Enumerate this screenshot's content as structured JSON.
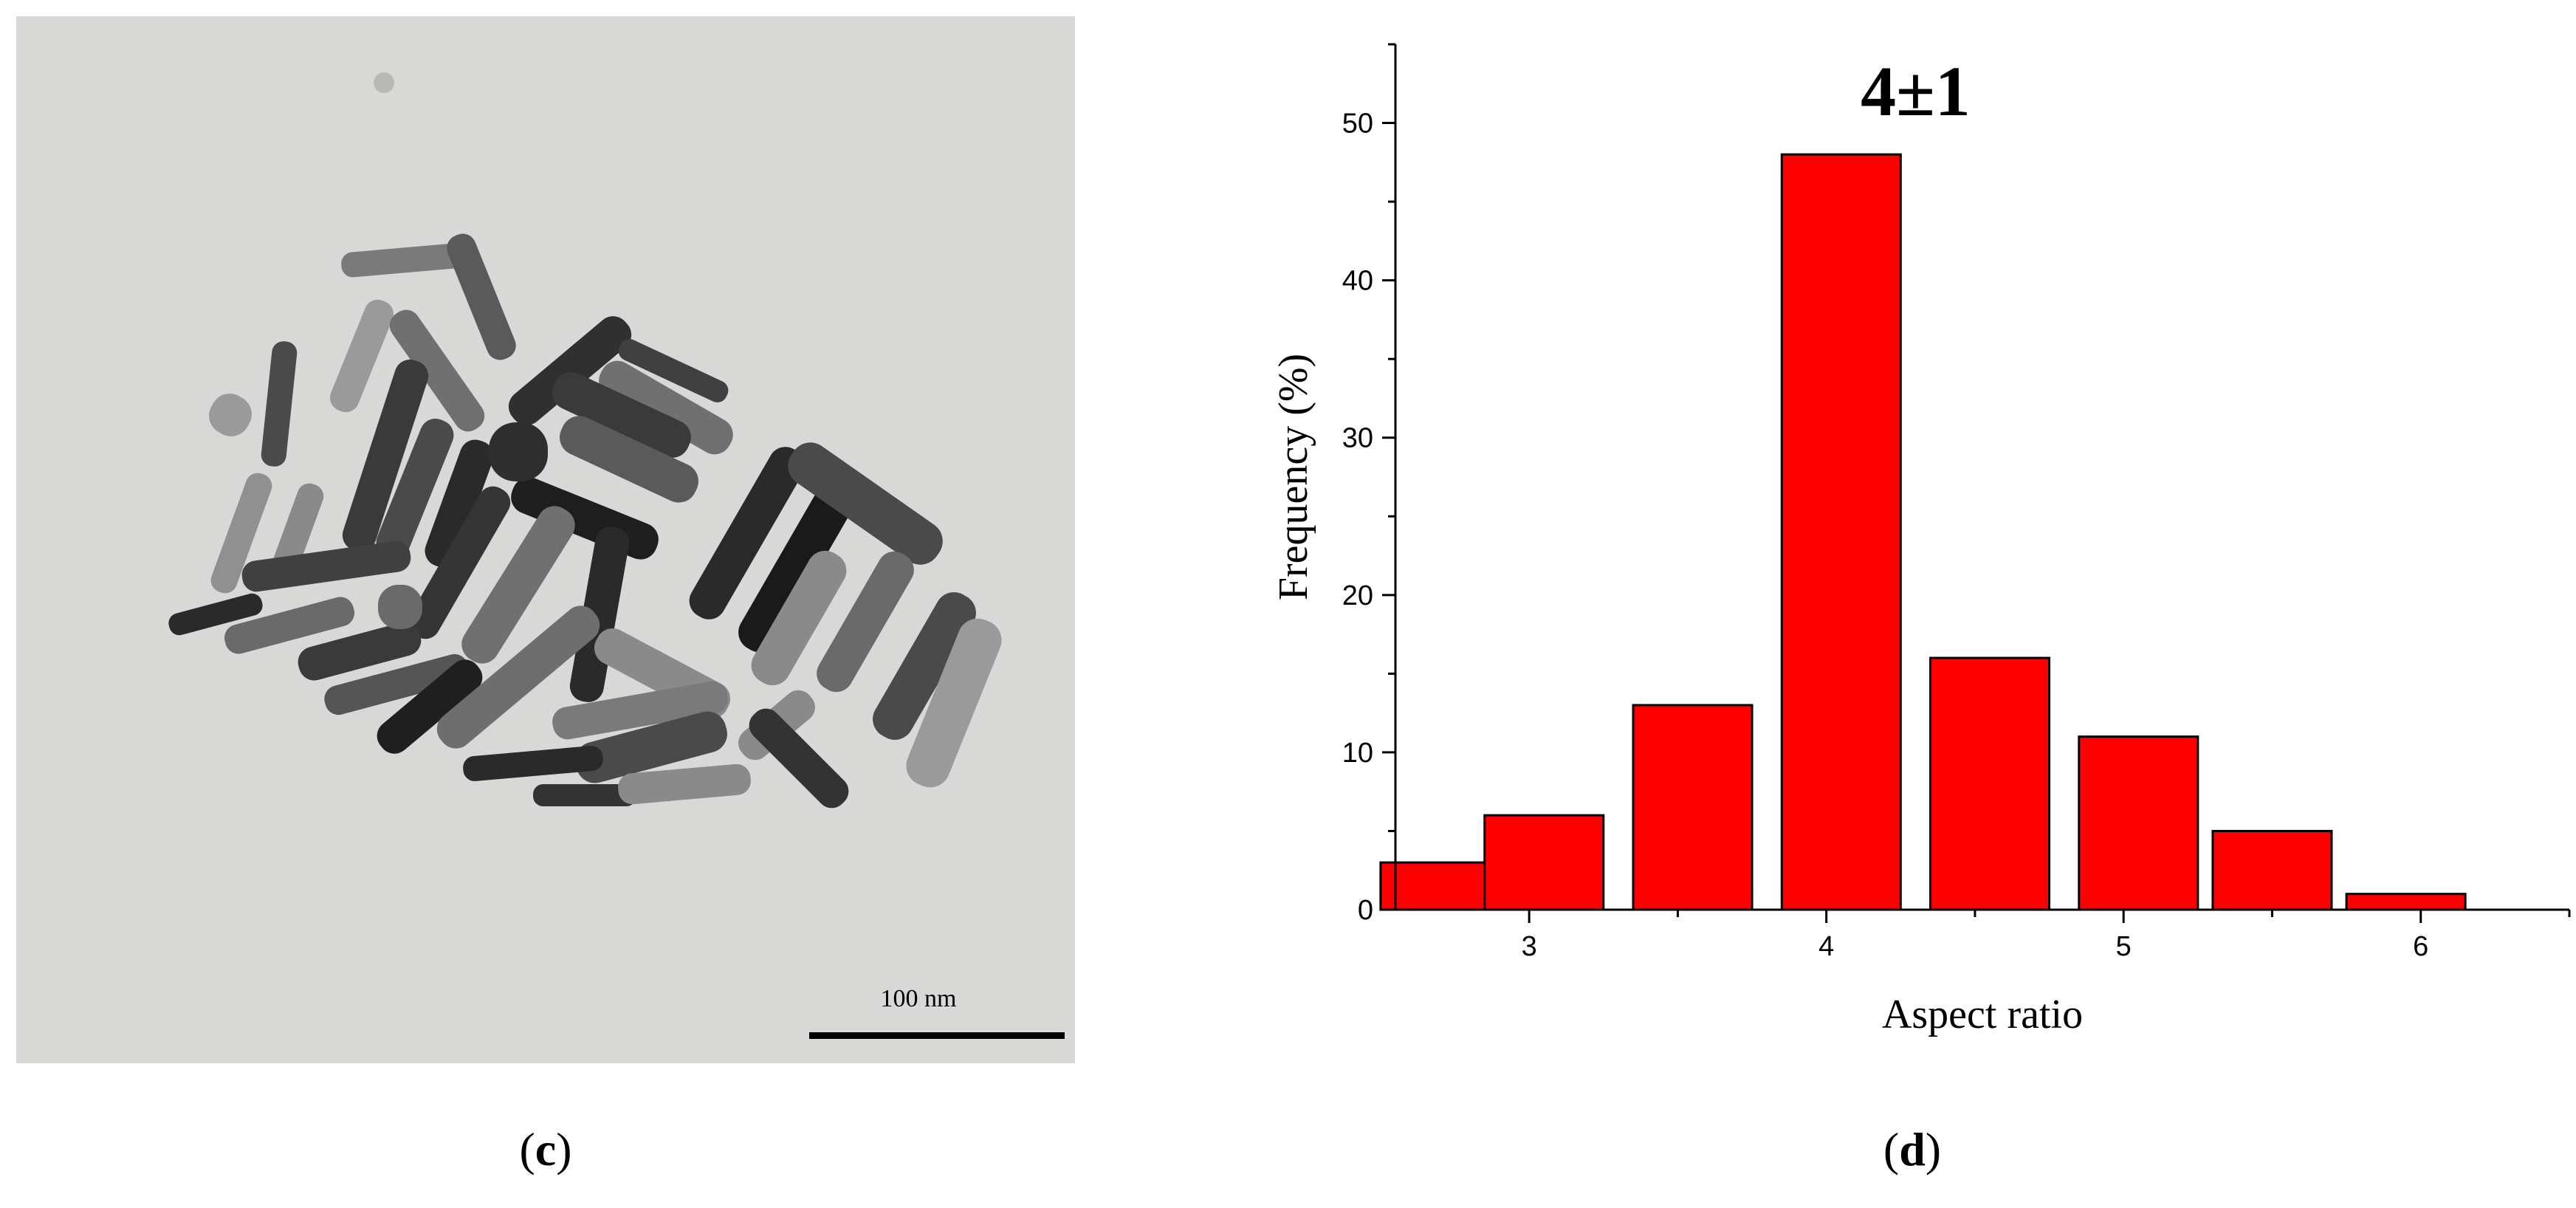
{
  "panels": {
    "c": {
      "label_open": "(",
      "label_letter": "c",
      "label_close": ")"
    },
    "d": {
      "label_open": "(",
      "label_letter": "d",
      "label_close": ")"
    }
  },
  "tem": {
    "scale_text": "100 nm",
    "colors": {
      "background": "#d8d8d6",
      "rod_dark": "#1e1e1e",
      "rod_light": "#8a8a8a"
    }
  },
  "chart_data": {
    "type": "bar",
    "x": [
      2.7,
      3.05,
      3.55,
      4.05,
      4.55,
      5.05,
      5.5,
      5.95
    ],
    "values": [
      3,
      6,
      13,
      48,
      16,
      11,
      5,
      1
    ],
    "bar_width": 0.4,
    "xlim": [
      2.55,
      6.5
    ],
    "ylim": [
      0,
      55
    ],
    "xticks": [
      3,
      4,
      5,
      6
    ],
    "yticks": [
      0,
      10,
      20,
      30,
      40,
      50
    ],
    "xlabel": "Aspect ratio",
    "ylabel": "Frequency (%)",
    "annotation": {
      "text": "4±1",
      "x": 4.3,
      "y": 50.5
    },
    "bar_color": "#ff0000",
    "edge_color": "#000000",
    "grid": false
  }
}
